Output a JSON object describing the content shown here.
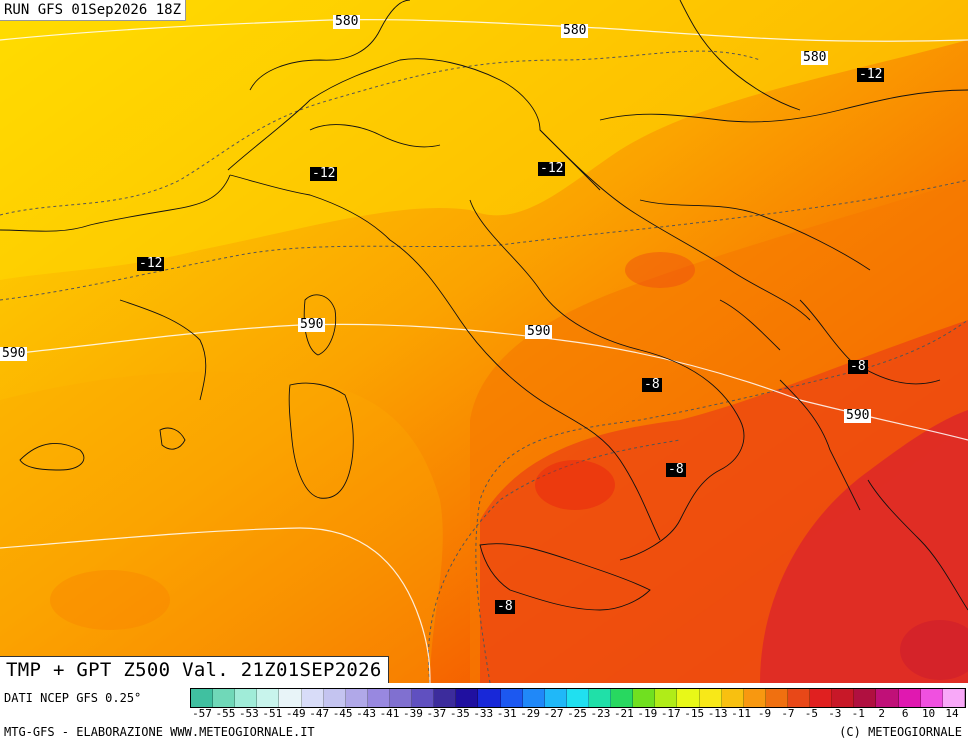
{
  "header": {
    "run_title": "RUN GFS 01Sep2026 18Z"
  },
  "map": {
    "field_title": "TMP + GPT Z500 Val. 21Z01SEP2026",
    "geopotential_labels": [
      "580",
      "580",
      "580",
      "590",
      "590",
      "590",
      "590"
    ],
    "temperature_labels": [
      "-12",
      "-12",
      "-12",
      "-12",
      "-8",
      "-8",
      "-8",
      "-8"
    ]
  },
  "footer": {
    "source": "DATI NCEP GFS 0.25°",
    "credit_left": "MTG-GFS - ELABORAZIONE WWW.METEOGIORNALE.IT",
    "credit_right": "(C) METEOGIORNALE"
  },
  "colorbar": {
    "tick_labels": [
      "-57",
      "-55",
      "-53",
      "-51",
      "-49",
      "-47",
      "-45",
      "-43",
      "-41",
      "-39",
      "-37",
      "-35",
      "-33",
      "-31",
      "-29",
      "-27",
      "-25",
      "-23",
      "-21",
      "-19",
      "-17",
      "-15",
      "-13",
      "-11",
      "-9",
      "-7",
      "-5",
      "-3",
      "-1",
      "2",
      "6",
      "10",
      "14"
    ],
    "colors": [
      "#40c0a0",
      "#70d8b8",
      "#a0ecd8",
      "#c8f4ec",
      "#e8f4f8",
      "#d8dcf8",
      "#c4c4f0",
      "#b0a8e8",
      "#9888e0",
      "#8070d0",
      "#6050c0",
      "#3c2c9c",
      "#2010a0",
      "#1828d8",
      "#1c58f0",
      "#2088f8",
      "#20b8f8",
      "#20e0f0",
      "#20e0a8",
      "#28d860",
      "#70e020",
      "#b0ec18",
      "#e8f818",
      "#f8e818",
      "#f8c010",
      "#f89810",
      "#f07010",
      "#e84818",
      "#e02020",
      "#c81828",
      "#b01040",
      "#c01078",
      "#e018b0",
      "#f050e0",
      "#f8a8f8"
    ],
    "temperature_scale_colors": [
      "#ffe100",
      "#fdbe00",
      "#fba300",
      "#f88400",
      "#f56100",
      "#eb3b18",
      "#dd2828",
      "#cc1830"
    ]
  }
}
